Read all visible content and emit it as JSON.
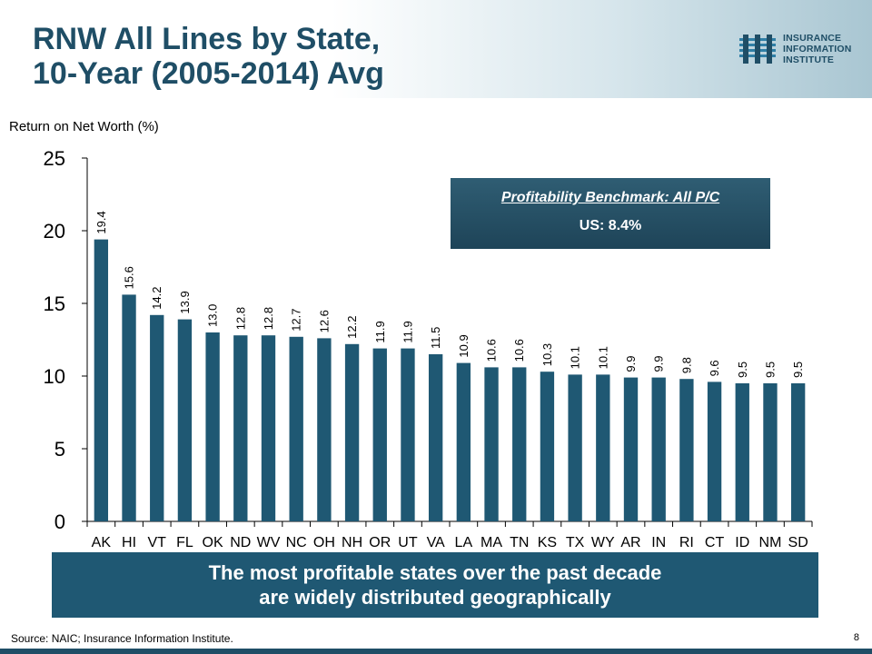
{
  "header": {
    "title_line1": "RNW All Lines by State,",
    "title_line2": "10-Year (2005-2014) Avg",
    "logo": {
      "line1": "INSURANCE",
      "line2": "INFORMATION",
      "line3": "INSTITUTE"
    }
  },
  "benchmark": {
    "title": "Profitability Benchmark: All P/C",
    "value": "US: 8.4%"
  },
  "callout": {
    "line1": "The most profitable states over the past decade",
    "line2": "are widely distributed geographically"
  },
  "footer": {
    "source": "Source: NAIC; Insurance Information Institute.",
    "page": "8"
  },
  "colors": {
    "bar": "#1f5873",
    "title": "#1f4e66",
    "callout_bg": "#1f5873"
  },
  "chart_data": {
    "type": "bar",
    "title": "",
    "xlabel": "",
    "ylabel": "Return on Net Worth (%)",
    "ylim": [
      0,
      25
    ],
    "yticks": [
      0,
      5,
      10,
      15,
      20,
      25
    ],
    "grid": false,
    "categories": [
      "AK",
      "HI",
      "VT",
      "FL",
      "OK",
      "ND",
      "WV",
      "NC",
      "OH",
      "NH",
      "OR",
      "UT",
      "VA",
      "LA",
      "MA",
      "TN",
      "KS",
      "TX",
      "WY",
      "AR",
      "IN",
      "RI",
      "CT",
      "ID",
      "NM",
      "SD"
    ],
    "values": [
      19.4,
      15.6,
      14.2,
      13.9,
      13.0,
      12.8,
      12.8,
      12.7,
      12.6,
      12.2,
      11.9,
      11.9,
      11.5,
      10.9,
      10.6,
      10.6,
      10.3,
      10.1,
      10.1,
      9.9,
      9.9,
      9.8,
      9.6,
      9.5,
      9.5,
      9.5
    ],
    "labels": [
      "19.4",
      "15.6",
      "14.2",
      "13.9",
      "13.0",
      "12.8",
      "12.8",
      "12.7",
      "12.6",
      "12.2",
      "11.9",
      "11.9",
      "11.5",
      "10.9",
      "10.6",
      "10.6",
      "10.3",
      "10.1",
      "10.1",
      "9.9",
      "9.9",
      "9.8",
      "9.6",
      "9.5",
      "9.5",
      "9.5"
    ]
  }
}
